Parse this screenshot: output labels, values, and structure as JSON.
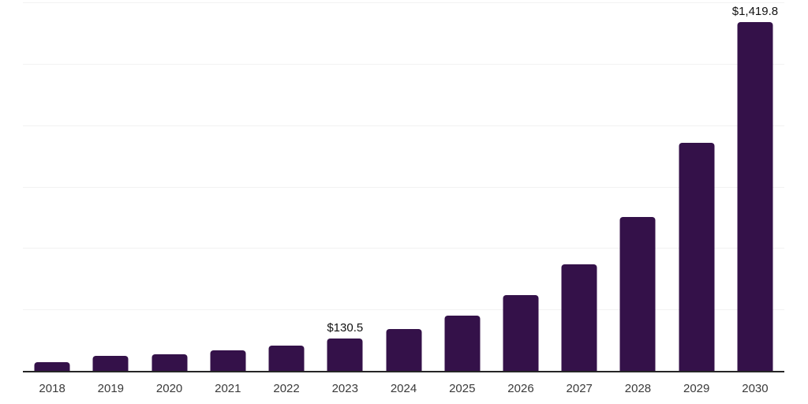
{
  "chart_data": {
    "type": "bar",
    "title": "",
    "xlabel": "",
    "ylabel": "",
    "categories": [
      "2018",
      "2019",
      "2020",
      "2021",
      "2022",
      "2023",
      "2024",
      "2025",
      "2026",
      "2027",
      "2028",
      "2029",
      "2030"
    ],
    "values": [
      36,
      60,
      67,
      84,
      104,
      130.5,
      170,
      226,
      307,
      434,
      626,
      929,
      1419.8
    ],
    "data_labels": [
      "",
      "",
      "",
      "",
      "",
      "$130.5",
      "",
      "",
      "",
      "",
      "",
      "",
      "$1,419.8"
    ],
    "ylim": [
      0,
      1500
    ],
    "gridline_step": 250,
    "grid": true,
    "legend_position": "none",
    "colors": {
      "bar": "#341149",
      "axis_line": "#262626",
      "gridline": "#f2f2f2",
      "tick_label": "#3a3a3a",
      "data_label": "#111111",
      "background": "#ffffff"
    }
  }
}
